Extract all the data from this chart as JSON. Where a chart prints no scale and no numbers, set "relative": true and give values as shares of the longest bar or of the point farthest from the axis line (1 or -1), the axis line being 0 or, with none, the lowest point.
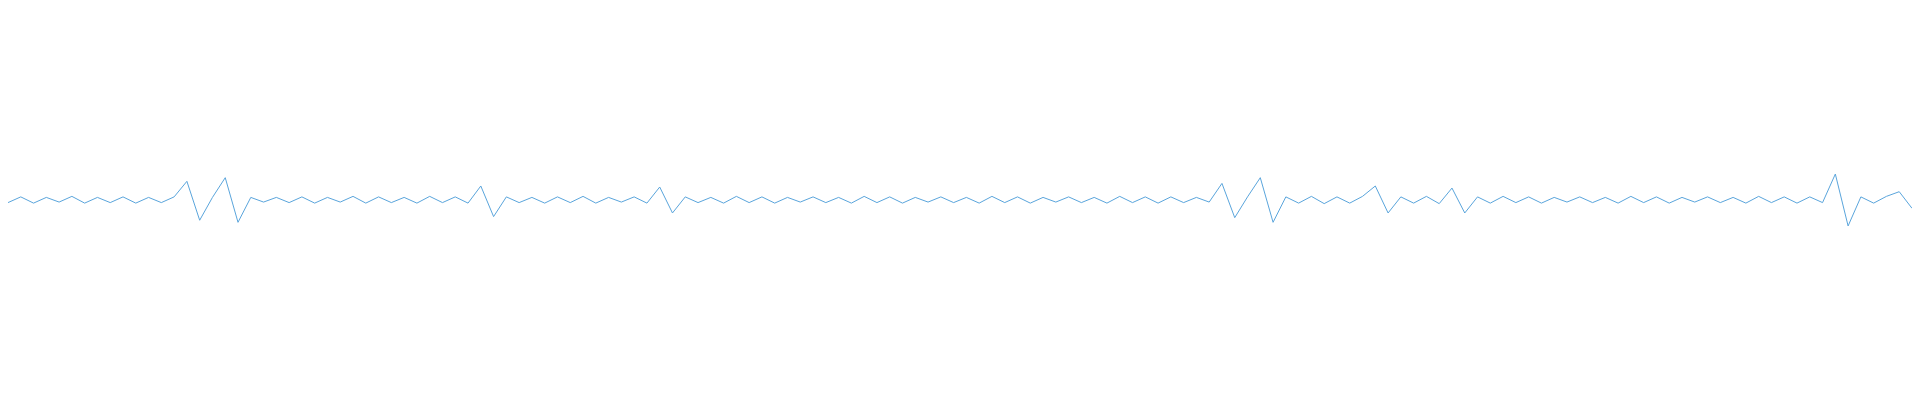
{
  "chart_data": {
    "type": "line",
    "relative": true,
    "color": "#5aa5dc",
    "categories": [
      null,
      null,
      null,
      null,
      null,
      null,
      null,
      null,
      null,
      null,
      null,
      null,
      null,
      null,
      null,
      null,
      null,
      null,
      null,
      null,
      null,
      null,
      null,
      null,
      null,
      null,
      null,
      null,
      null,
      null,
      null,
      null,
      null,
      null,
      null,
      null,
      null,
      null,
      null,
      null,
      null,
      null,
      null,
      null,
      null,
      null,
      null,
      null,
      null,
      null,
      null,
      null,
      null,
      null,
      null,
      null,
      null,
      null,
      null,
      null,
      null,
      null,
      null,
      null,
      null,
      null,
      null,
      null,
      null,
      null,
      null,
      null,
      null,
      null,
      null,
      null,
      null,
      null,
      null,
      null,
      null,
      null,
      null,
      null,
      null,
      null,
      null,
      null,
      null,
      null,
      null,
      null,
      null,
      null,
      null,
      null,
      null,
      null,
      null,
      null,
      null,
      null,
      null,
      null,
      null,
      null,
      null,
      null,
      null,
      null,
      null,
      null,
      null,
      null,
      null,
      null,
      null,
      null,
      null,
      null,
      null,
      null,
      null,
      null,
      null,
      null,
      null,
      null,
      null,
      null,
      null,
      null,
      null,
      null,
      null,
      null,
      null,
      null,
      null,
      null,
      null,
      null,
      null,
      null,
      null,
      null,
      null,
      null,
      null,
      null
    ],
    "values": [
      0.45,
      0.56,
      0.44,
      0.55,
      0.46,
      0.57,
      0.44,
      0.55,
      0.45,
      0.56,
      0.44,
      0.55,
      0.45,
      0.56,
      0.86,
      0.11,
      0.55,
      0.93,
      0.07,
      0.55,
      0.46,
      0.55,
      0.45,
      0.56,
      0.44,
      0.55,
      0.46,
      0.57,
      0.44,
      0.56,
      0.45,
      0.55,
      0.44,
      0.57,
      0.45,
      0.56,
      0.44,
      0.77,
      0.18,
      0.56,
      0.45,
      0.55,
      0.44,
      0.56,
      0.45,
      0.57,
      0.44,
      0.55,
      0.46,
      0.56,
      0.44,
      0.75,
      0.25,
      0.56,
      0.45,
      0.55,
      0.44,
      0.57,
      0.45,
      0.56,
      0.44,
      0.55,
      0.46,
      0.56,
      0.45,
      0.55,
      0.44,
      0.57,
      0.45,
      0.56,
      0.44,
      0.55,
      0.46,
      0.56,
      0.45,
      0.55,
      0.44,
      0.57,
      0.45,
      0.56,
      0.44,
      0.55,
      0.46,
      0.56,
      0.45,
      0.55,
      0.44,
      0.57,
      0.45,
      0.56,
      0.44,
      0.56,
      0.45,
      0.55,
      0.46,
      0.82,
      0.16,
      0.56,
      0.93,
      0.07,
      0.56,
      0.44,
      0.57,
      0.43,
      0.56,
      0.44,
      0.57,
      0.77,
      0.25,
      0.56,
      0.44,
      0.57,
      0.43,
      0.73,
      0.25,
      0.56,
      0.44,
      0.57,
      0.45,
      0.56,
      0.44,
      0.55,
      0.46,
      0.56,
      0.45,
      0.55,
      0.44,
      0.57,
      0.45,
      0.56,
      0.44,
      0.55,
      0.46,
      0.56,
      0.45,
      0.55,
      0.44,
      0.57,
      0.45,
      0.56,
      0.44,
      0.56,
      0.45,
      1,
      0,
      0.56,
      0.44,
      0.57,
      0.66,
      0.34
    ]
  }
}
